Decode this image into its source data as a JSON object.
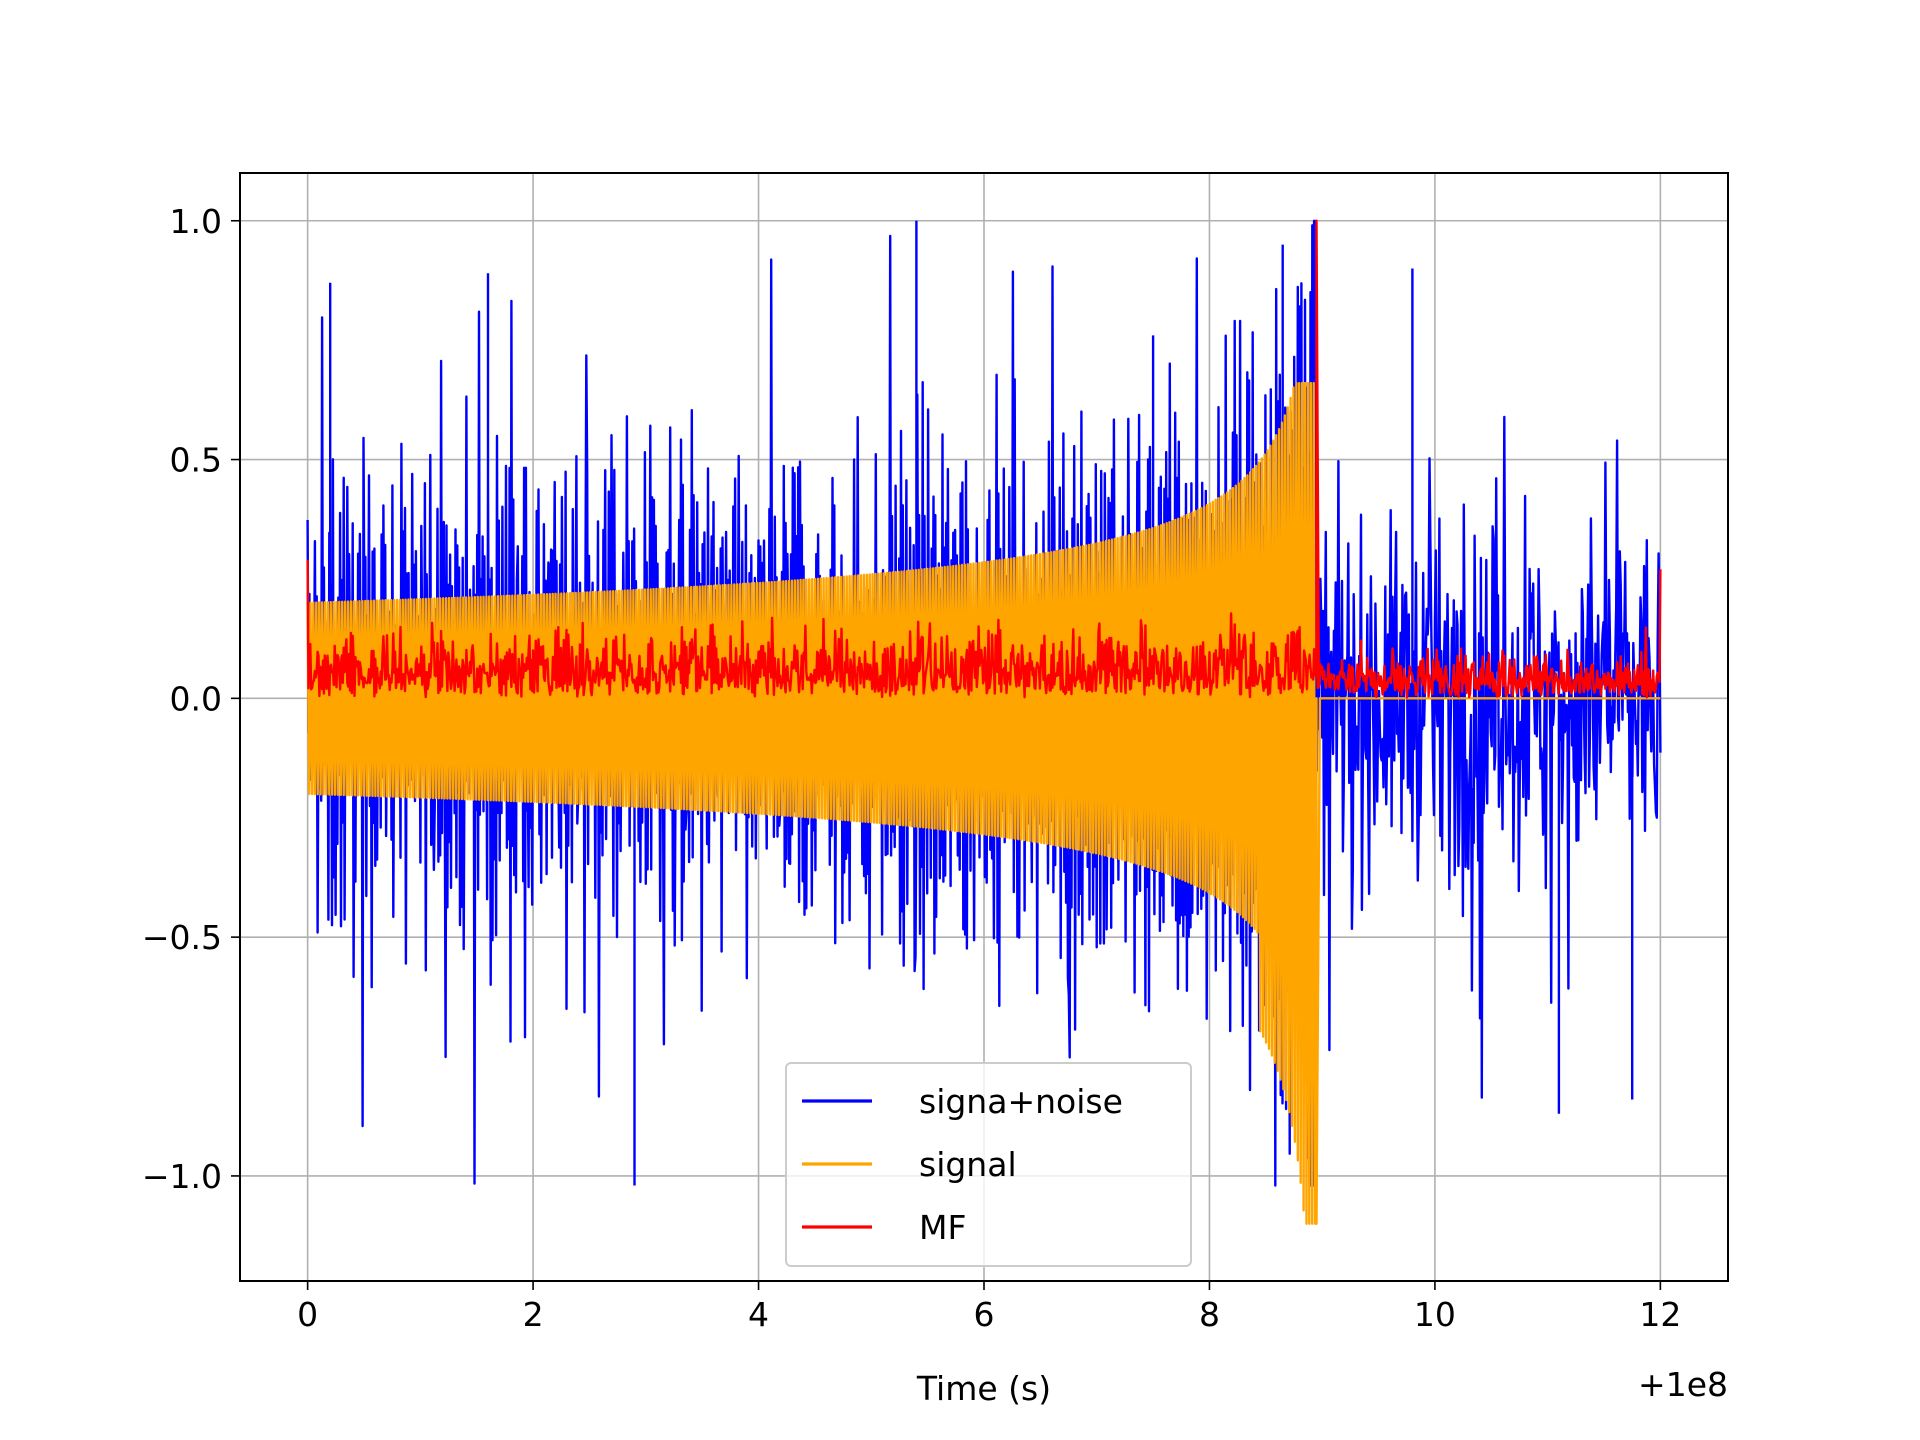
{
  "chart_data": {
    "type": "line",
    "title": "",
    "xlabel": "Time (s)",
    "ylabel": "",
    "x_offset_label": "+1e8",
    "xlim": [
      -0.6,
      12.6
    ],
    "ylim": [
      -1.22,
      1.1
    ],
    "xticks": [
      0,
      2,
      4,
      6,
      8,
      10,
      12
    ],
    "xtick_labels": [
      "0",
      "2",
      "4",
      "6",
      "8",
      "10",
      "12"
    ],
    "yticks": [
      -1.0,
      -0.5,
      0.0,
      0.5,
      1.0
    ],
    "ytick_labels": [
      "−1.0",
      "−0.5",
      "0.0",
      "0.5",
      "1.0"
    ],
    "grid": true,
    "legend_position": "lower-center",
    "series": [
      {
        "name": "signa+noise",
        "color": "#0000ff",
        "description_values": {
          "t_start": 0.0,
          "t_end": 12.0,
          "envelope_min": -1.02,
          "envelope_max": 1.0,
          "spikes": [
            [
              0.2,
              0.87
            ],
            [
              1.6,
              0.89
            ],
            [
              2.9,
              -1.02
            ],
            [
              5.4,
              1.0
            ],
            [
              7.5,
              0.76
            ],
            [
              8.65,
              0.95
            ],
            [
              9.8,
              0.9
            ],
            [
              11.1,
              -0.87
            ],
            [
              11.75,
              -0.84
            ]
          ]
        }
      },
      {
        "name": "signal",
        "color": "#ffa500",
        "description_values": {
          "t_start": 0.0,
          "t_end": 8.95,
          "amplitude_start": 0.2,
          "peak_time": 8.95,
          "peak_max": 0.66,
          "peak_min": -1.1,
          "after_peak": 0.0
        }
      },
      {
        "name": "MF",
        "color": "#ff0000",
        "description_values": {
          "t_start": 0.0,
          "t_end": 12.0,
          "baseline_max": 0.15,
          "peak_time": 8.95,
          "peak_value": 1.0,
          "edge_values": [
            0.29,
            0.27
          ]
        }
      }
    ]
  }
}
